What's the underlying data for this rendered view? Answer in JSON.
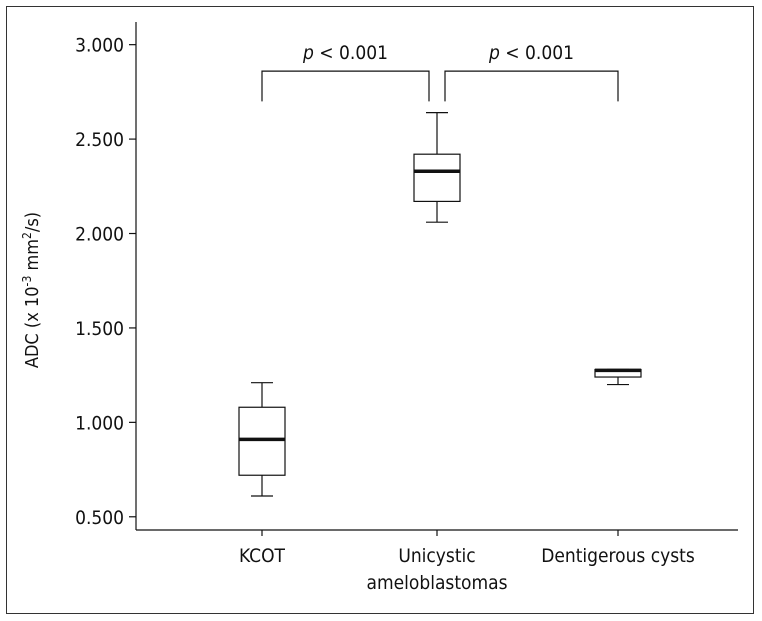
{
  "chart_data": {
    "type": "box",
    "ylabel": {
      "prefix": "ADC (x 10",
      "exp1": "-3",
      "mid": " mm",
      "exp2": "2",
      "suffix": "/s)"
    },
    "ylim": [
      0.43,
      3.12
    ],
    "yticks": [
      "0.500",
      "1.000",
      "1.500",
      "2.000",
      "2.500",
      "3.000"
    ],
    "ytick_values": [
      0.5,
      1.0,
      1.5,
      2.0,
      2.5,
      3.0
    ],
    "categories": [
      {
        "lines": [
          "KCOT"
        ]
      },
      {
        "lines": [
          "Unicystic",
          "ameloblastomas"
        ]
      },
      {
        "lines": [
          "Dentigerous cysts"
        ]
      }
    ],
    "boxes": [
      {
        "min": 0.61,
        "q1": 0.72,
        "median": 0.91,
        "q3": 1.08,
        "max": 1.21
      },
      {
        "min": 2.06,
        "q1": 2.17,
        "median": 2.33,
        "q3": 2.42,
        "max": 2.64
      },
      {
        "min": 1.2,
        "q1": 1.24,
        "median": 1.275,
        "q3": 1.28,
        "max": 1.28
      }
    ],
    "significance": [
      {
        "from": 0,
        "to": 1,
        "p_italic": "p",
        "p_text": " < 0.001",
        "bracket_y": 2.86,
        "leg_bottom": 2.7
      },
      {
        "from": 1,
        "to": 2,
        "p_italic": "p",
        "p_text": " < 0.001",
        "bracket_y": 2.86,
        "leg_bottom": 2.7
      }
    ],
    "grid": false,
    "legend": "none",
    "color": "#111111"
  }
}
